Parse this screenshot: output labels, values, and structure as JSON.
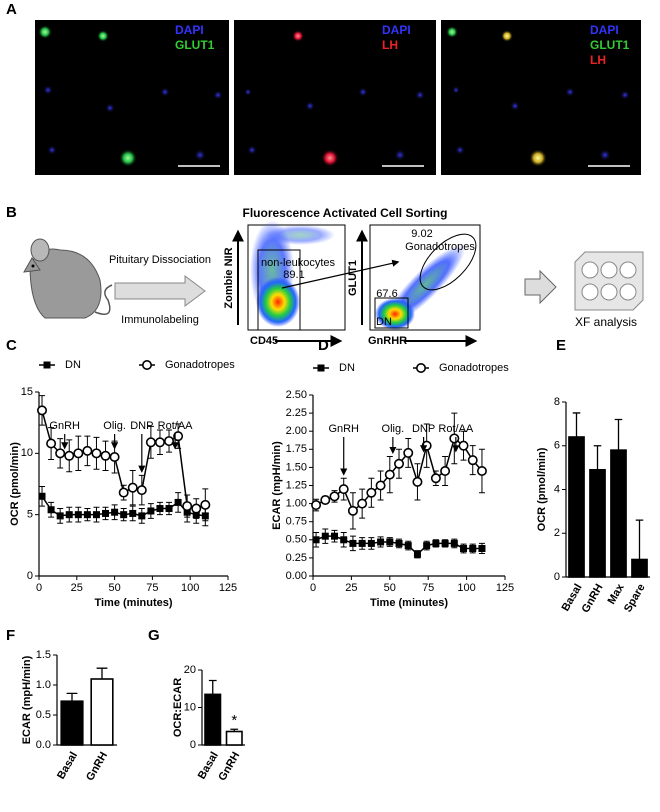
{
  "panel_labels": [
    "A",
    "B",
    "C",
    "D",
    "E",
    "F",
    "G"
  ],
  "microscopy": [
    {
      "labels": [
        "DAPI",
        "GLUT1"
      ]
    },
    {
      "labels": [
        "DAPI",
        "LH"
      ]
    },
    {
      "labels": [
        "DAPI",
        "GLUT1",
        "LH"
      ]
    }
  ],
  "workflow": {
    "step_top": "Pituitary Dissociation",
    "step_bottom": "Immunolabeling",
    "sorting_title": "Fluorescence Activated Cell Sorting",
    "end": "XF analysis"
  },
  "flow_plots": [
    {
      "y_label": "Zombie NIR",
      "x_label": "CD45",
      "gate_label": "non-leukocytes",
      "gate_value": 89.1
    },
    {
      "y_label": "GLUT1",
      "x_label": "GnRHR",
      "gate_label": "Gonadotropes",
      "gate_value": 9.02,
      "gate2_label": "DN",
      "gate2_value": 67.6
    }
  ],
  "chart_data": [
    {
      "type": "line",
      "y_label": "OCR (pmol/min)",
      "x_label": "Time (minutes)",
      "x": [
        2,
        8,
        14,
        20,
        26,
        32,
        38,
        44,
        50,
        56,
        62,
        68,
        74,
        80,
        86,
        92,
        98,
        104,
        110
      ],
      "xlim": [
        0,
        125
      ],
      "xticks": [
        0,
        25,
        50,
        75,
        100,
        125
      ],
      "ylim": [
        0,
        15
      ],
      "yticks": [
        0,
        5,
        10,
        15
      ],
      "series": [
        {
          "name": "DN",
          "color": "#000000",
          "marker": "square",
          "values": [
            6.5,
            5.4,
            4.9,
            5.0,
            5.0,
            5.0,
            5.0,
            5.1,
            5.2,
            5.0,
            5.1,
            4.9,
            5.3,
            5.5,
            5.5,
            6.0,
            5.2,
            5.0,
            4.9
          ],
          "errors": [
            0.8,
            0.6,
            0.6,
            0.6,
            0.6,
            0.5,
            0.6,
            0.5,
            0.6,
            0.5,
            0.6,
            0.6,
            0.6,
            0.5,
            0.5,
            0.8,
            0.8,
            0.7,
            0.8
          ]
        },
        {
          "name": "Gonadotropes",
          "color": "#000000",
          "marker": "open-circle",
          "values": [
            13.5,
            10.8,
            10.0,
            9.8,
            10.0,
            10.2,
            10.0,
            9.8,
            9.7,
            6.8,
            7.2,
            7.0,
            10.9,
            10.9,
            11.0,
            11.4,
            5.7,
            5.5,
            5.8
          ],
          "errors": [
            1.2,
            1.3,
            1.2,
            1.3,
            1.4,
            1.2,
            1.3,
            1.2,
            1.3,
            0.6,
            1.4,
            1.2,
            1.3,
            1.0,
            0.9,
            1.0,
            0.9,
            0.8,
            1.3
          ]
        }
      ],
      "annotations": [
        {
          "text": "GnRH",
          "x": 17
        },
        {
          "text": "Olig.",
          "x": 50
        },
        {
          "text": "DNP",
          "x": 68
        },
        {
          "text": "Rot/AA",
          "x": 90
        }
      ]
    },
    {
      "type": "line",
      "y_label": "ECAR (mpH/min)",
      "x_label": "Time (minutes)",
      "x": [
        2,
        8,
        14,
        20,
        26,
        32,
        38,
        44,
        50,
        56,
        62,
        68,
        74,
        80,
        86,
        92,
        98,
        104,
        110
      ],
      "xlim": [
        0,
        125
      ],
      "xticks": [
        0,
        25,
        50,
        75,
        100,
        125
      ],
      "ylim": [
        0,
        2.5
      ],
      "yticks": [
        {
          "value": 0,
          "label": "0.00"
        },
        {
          "value": 0.25,
          "label": "0.25"
        },
        {
          "value": 0.5,
          "label": "0.50"
        },
        {
          "value": 0.75,
          "label": "0.75"
        },
        {
          "value": 1,
          "label": "1.00"
        },
        {
          "value": 1.25,
          "label": "1.25"
        },
        {
          "value": 1.5,
          "label": "1.50"
        },
        {
          "value": 1.75,
          "label": "1.75"
        },
        {
          "value": 2,
          "label": "2.00"
        },
        {
          "value": 2.25,
          "label": "2.25"
        },
        {
          "value": 2.5,
          "label": "2.50"
        }
      ],
      "series": [
        {
          "name": "DN",
          "color": "#000000",
          "marker": "square",
          "values": [
            0.5,
            0.55,
            0.55,
            0.5,
            0.45,
            0.45,
            0.45,
            0.47,
            0.47,
            0.45,
            0.42,
            0.3,
            0.42,
            0.45,
            0.45,
            0.45,
            0.38,
            0.38,
            0.38
          ],
          "errors": [
            0.1,
            0.1,
            0.08,
            0.1,
            0.1,
            0.08,
            0.08,
            0.07,
            0.06,
            0.06,
            0.06,
            0.05,
            0.06,
            0.05,
            0.05,
            0.06,
            0.06,
            0.06,
            0.07
          ]
        },
        {
          "name": "Gonadotropes",
          "color": "#000000",
          "marker": "open-circle",
          "values": [
            0.98,
            1.05,
            1.1,
            1.2,
            0.9,
            1.0,
            1.15,
            1.25,
            1.4,
            1.55,
            1.7,
            1.3,
            1.8,
            1.35,
            1.45,
            1.9,
            1.8,
            1.6,
            1.45
          ],
          "errors": [
            0.08,
            0.05,
            0.08,
            0.15,
            0.25,
            0.2,
            0.2,
            0.2,
            0.25,
            0.2,
            0.2,
            0.25,
            0.3,
            0.1,
            0.2,
            0.35,
            0.2,
            0.2,
            0.3
          ]
        }
      ],
      "annotations": [
        {
          "text": "GnRH",
          "x": 20
        },
        {
          "text": "Olig.",
          "x": 52
        },
        {
          "text": "DNP",
          "x": 72
        },
        {
          "text": "Rot/AA",
          "x": 93
        }
      ]
    },
    {
      "type": "bar",
      "y_label": "OCR (pmol/min)",
      "categories": [
        "Basal",
        "GnRH",
        "Max",
        "Spare"
      ],
      "values": [
        6.4,
        4.9,
        5.8,
        0.8
      ],
      "errors": [
        1.1,
        1.1,
        1.4,
        1.8
      ],
      "colors": [
        "#000000",
        "#000000",
        "#000000",
        "#000000"
      ],
      "ylim": [
        0,
        8
      ],
      "yticks": [
        0,
        2,
        4,
        6,
        8
      ]
    },
    {
      "type": "bar",
      "y_label": "ECAR (mpH/min)",
      "categories": [
        "Basal",
        "GnRH"
      ],
      "values": [
        0.73,
        1.1
      ],
      "errors": [
        0.13,
        0.18
      ],
      "colors": [
        "#000000",
        "#ffffff"
      ],
      "ylim": [
        0,
        1.5
      ],
      "yticks": [
        {
          "value": 0,
          "label": "0.0"
        },
        0.5,
        {
          "value": 1,
          "label": "1.0"
        },
        1.5
      ]
    },
    {
      "type": "bar",
      "y_label": "OCR:ECAR",
      "categories": [
        "Basal",
        "GnRH"
      ],
      "values": [
        13.5,
        3.6
      ],
      "errors": [
        3.7,
        0.6
      ],
      "colors": [
        "#000000",
        "#ffffff"
      ],
      "ylim": [
        0,
        20
      ],
      "yticks": [
        0,
        10,
        20
      ],
      "annotations": [
        {
          "text": "*"
        }
      ]
    }
  ]
}
